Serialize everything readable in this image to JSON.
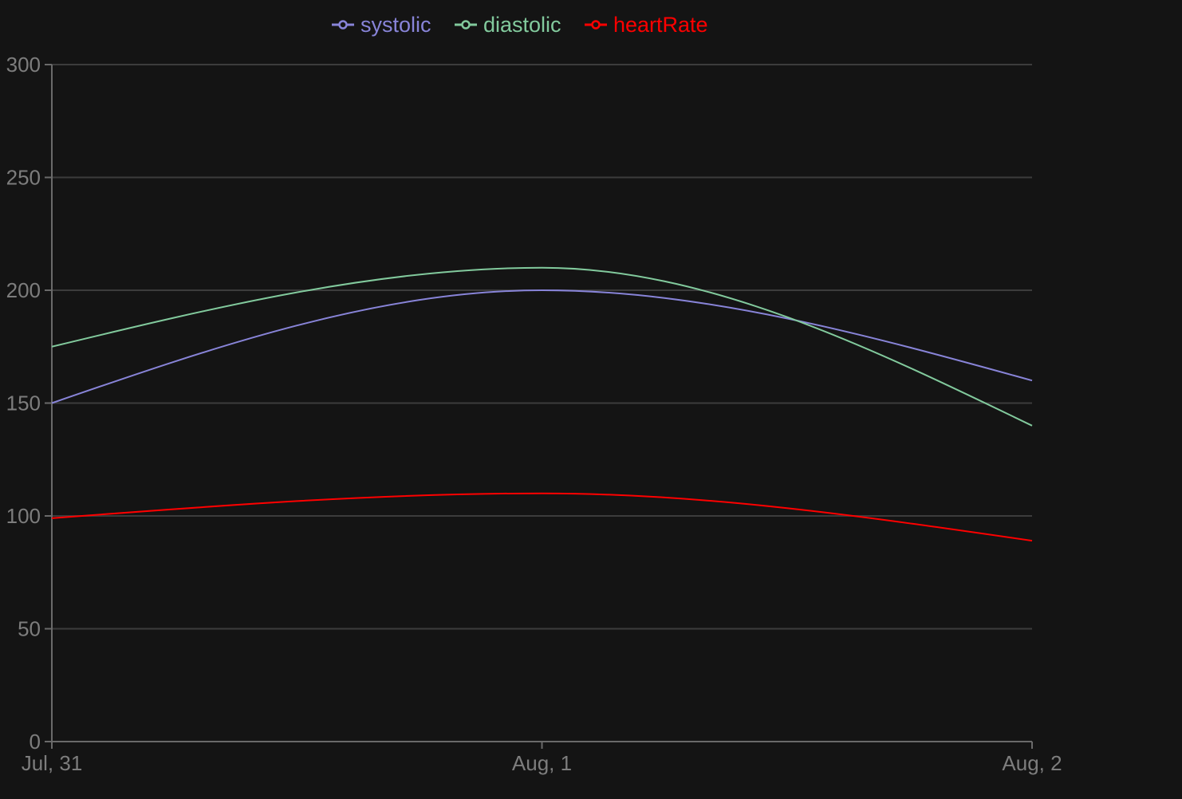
{
  "chart_data": {
    "type": "line",
    "title": "",
    "xlabel": "",
    "ylabel": "",
    "x": [
      "Jul, 31",
      "Aug, 1",
      "Aug, 2"
    ],
    "ylim": [
      0,
      300
    ],
    "yticks": [
      0,
      50,
      100,
      150,
      200,
      250,
      300
    ],
    "grid": true,
    "legend_position": "top-center",
    "series": [
      {
        "name": "systolic",
        "color": "#8884d8",
        "values": [
          150,
          200,
          160
        ]
      },
      {
        "name": "diastolic",
        "color": "#82ca9d",
        "values": [
          175,
          210,
          140
        ]
      },
      {
        "name": "heartRate",
        "color": "#ff0000",
        "values": [
          99,
          110,
          89
        ]
      }
    ]
  },
  "colors": {
    "background": "#141414",
    "grid": "#3c3c3c",
    "axis": "#6a6a6a",
    "tick_text": "#7d7d7d"
  }
}
